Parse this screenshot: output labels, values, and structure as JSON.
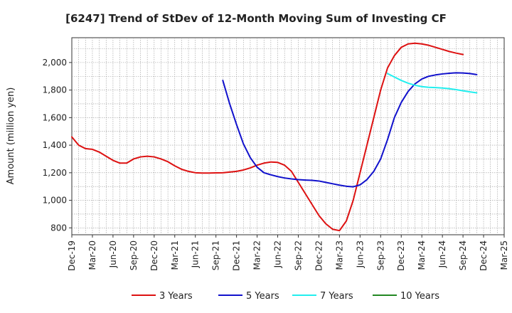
{
  "chart_data": {
    "type": "line",
    "title": "[6247]  Trend of StDev of 12-Month Moving Sum of Investing CF",
    "xlabel": "",
    "ylabel": "Amount (million yen)",
    "ylim": [
      750,
      2180
    ],
    "yticks": [
      800,
      1000,
      1200,
      1400,
      1600,
      1800,
      2000
    ],
    "ytick_labels": [
      "800",
      "1,000",
      "1,200",
      "1,400",
      "1,600",
      "1,800",
      "2,000"
    ],
    "x_start": "Dec-19",
    "x_end": "Mar-25",
    "xtick_labels": [
      "Dec-19",
      "Mar-20",
      "Jun-20",
      "Sep-20",
      "Dec-20",
      "Mar-21",
      "Jun-21",
      "Sep-21",
      "Dec-21",
      "Mar-22",
      "Jun-22",
      "Sep-22",
      "Dec-22",
      "Mar-23",
      "Jun-23",
      "Sep-23",
      "Dec-23",
      "Mar-24",
      "Jun-24",
      "Sep-24",
      "Dec-24",
      "Mar-25"
    ],
    "grid": true,
    "legend_position": "bottom",
    "series": [
      {
        "name": "3 Years",
        "color": "#dd1111",
        "start": "Dec-19",
        "values": [
          1460,
          1400,
          1375,
          1370,
          1350,
          1320,
          1290,
          1270,
          1270,
          1300,
          1315,
          1320,
          1315,
          1300,
          1280,
          1250,
          1225,
          1210,
          1200,
          1198,
          1198,
          1199,
          1200,
          1205,
          1210,
          1220,
          1235,
          1255,
          1270,
          1278,
          1275,
          1255,
          1210,
          1130,
          1050,
          970,
          890,
          830,
          790,
          780,
          850,
          1000,
          1200,
          1400,
          1600,
          1800,
          1960,
          2050,
          2110,
          2135,
          2140,
          2135,
          2125,
          2110,
          2095,
          2080,
          2068,
          2058
        ]
      },
      {
        "name": "5 Years",
        "color": "#1111cc",
        "start": "Oct-21",
        "values": [
          1870,
          1700,
          1550,
          1410,
          1310,
          1240,
          1200,
          1185,
          1172,
          1162,
          1155,
          1150,
          1147,
          1145,
          1140,
          1130,
          1120,
          1110,
          1102,
          1098,
          1112,
          1150,
          1210,
          1300,
          1440,
          1600,
          1710,
          1790,
          1845,
          1880,
          1900,
          1910,
          1917,
          1922,
          1925,
          1924,
          1920,
          1912
        ]
      },
      {
        "name": "7 Years",
        "color": "#22eeee",
        "start": "Oct-23",
        "values": [
          1920,
          1895,
          1870,
          1850,
          1835,
          1825,
          1820,
          1818,
          1815,
          1810,
          1803,
          1795,
          1787,
          1780
        ]
      },
      {
        "name": "10 Years",
        "color": "#228822",
        "start": "Oct-23",
        "values": []
      }
    ]
  }
}
